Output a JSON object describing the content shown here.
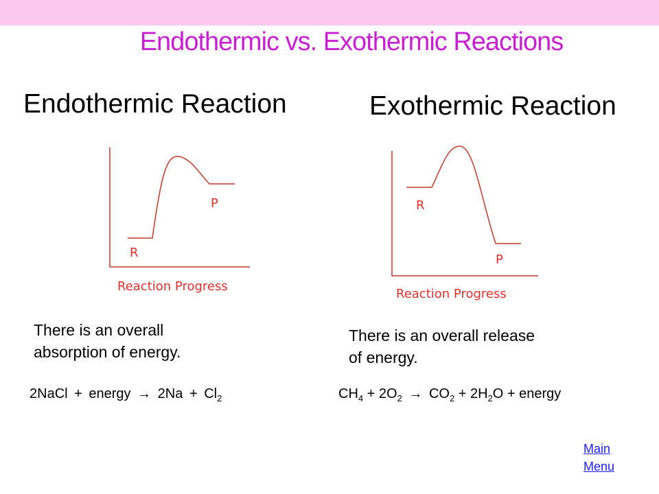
{
  "colors": {
    "top_bar": "#fbc8f1",
    "title": "#c81fd3",
    "curve": "#c0392b",
    "axis": "#c0392b",
    "label": "#e0302b",
    "link": "#1c1cff"
  },
  "title": "Endothermic vs. Exothermic Reactions",
  "endothermic": {
    "heading": "Endothermic Reaction",
    "reactant_label": "R",
    "product_label": "P",
    "x_axis_label": "Reaction Progress",
    "statement_line1": "There is an overall",
    "statement_line2": "absorption of energy.",
    "equation": {
      "part1": "2NaCl",
      "plus1": "+",
      "energy": "energy",
      "arrow": "→",
      "part2": "2Na",
      "plus2": "+",
      "part3": "Cl",
      "sub3": "2"
    }
  },
  "exothermic": {
    "heading": "Exothermic Reaction",
    "reactant_label": "R",
    "product_label": "P",
    "x_axis_label": "Reaction Progress",
    "statement_line1": "There is an overall release",
    "statement_line2": "of energy.",
    "equation": {
      "p1": "CH",
      "s1": "4",
      "p2": " + 2O",
      "s2": "2",
      "arrow": "→",
      "p3": "CO",
      "s3": "2",
      "p4": " + 2H",
      "s4": "2",
      "p5": "O + energy"
    }
  },
  "menu": {
    "line1": "Main",
    "line2": "Menu"
  }
}
